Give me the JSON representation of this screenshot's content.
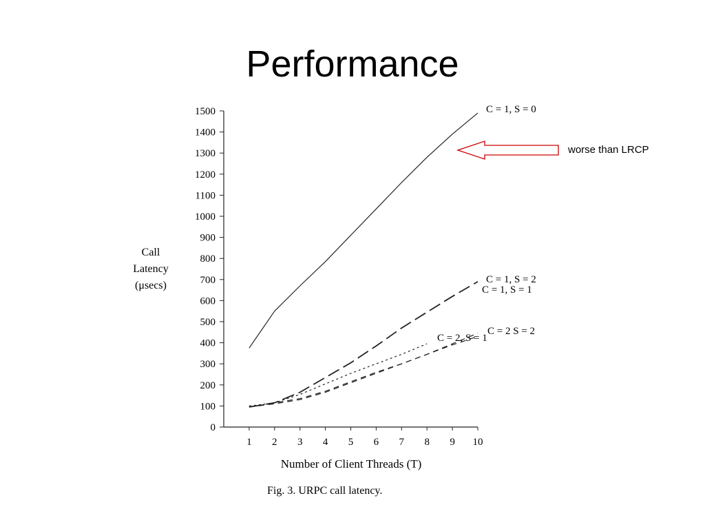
{
  "slide": {
    "title": "Performance"
  },
  "callout": {
    "text": "worse than LRCP",
    "color": "#cc0000"
  },
  "caption": "Fig. 3.    URPC call latency.",
  "chart_data": {
    "type": "line",
    "xlabel": "Number of Client Threads (T)",
    "ylabel": [
      "Call",
      "Latency",
      "(μsecs)"
    ],
    "xlim": [
      0,
      10
    ],
    "ylim": [
      0,
      1500
    ],
    "xticks": [
      1,
      2,
      3,
      4,
      5,
      6,
      7,
      8,
      9,
      10
    ],
    "yticks": [
      0,
      100,
      200,
      300,
      400,
      500,
      600,
      700,
      800,
      900,
      1000,
      1100,
      1200,
      1300,
      1400,
      1500
    ],
    "grid": false,
    "series": [
      {
        "name": "C = 1, S = 0",
        "style": "solid",
        "x": [
          1,
          2,
          3,
          4,
          5,
          6,
          7,
          8,
          9,
          10
        ],
        "y": [
          375,
          550,
          670,
          785,
          910,
          1035,
          1160,
          1280,
          1390,
          1490
        ]
      },
      {
        "name": "C = 1, S = 2",
        "style": "longdash",
        "x": [
          1,
          2,
          3,
          4,
          5,
          6,
          7,
          8,
          9,
          10
        ],
        "y": [
          95,
          115,
          165,
          235,
          305,
          385,
          470,
          545,
          620,
          690
        ]
      },
      {
        "name": "C = 1, S = 1",
        "style": "dotted",
        "x": [
          1,
          2,
          3,
          4,
          5,
          6,
          7,
          8
        ],
        "y": [
          100,
          115,
          155,
          205,
          255,
          300,
          345,
          395
        ]
      },
      {
        "name": "C = 2, S = 1",
        "style": "shortdash",
        "x": [
          1,
          2,
          3,
          4,
          5,
          6,
          7,
          8,
          9,
          10
        ],
        "y": [
          95,
          115,
          135,
          170,
          215,
          260,
          300,
          345,
          390,
          430
        ]
      },
      {
        "name": "C = 2 S = 2",
        "style": "shortdash",
        "x": [
          1,
          2,
          3,
          4,
          5,
          6,
          7,
          8,
          9,
          10
        ],
        "y": [
          95,
          110,
          130,
          165,
          210,
          255,
          300,
          345,
          395,
          445
        ]
      }
    ]
  }
}
